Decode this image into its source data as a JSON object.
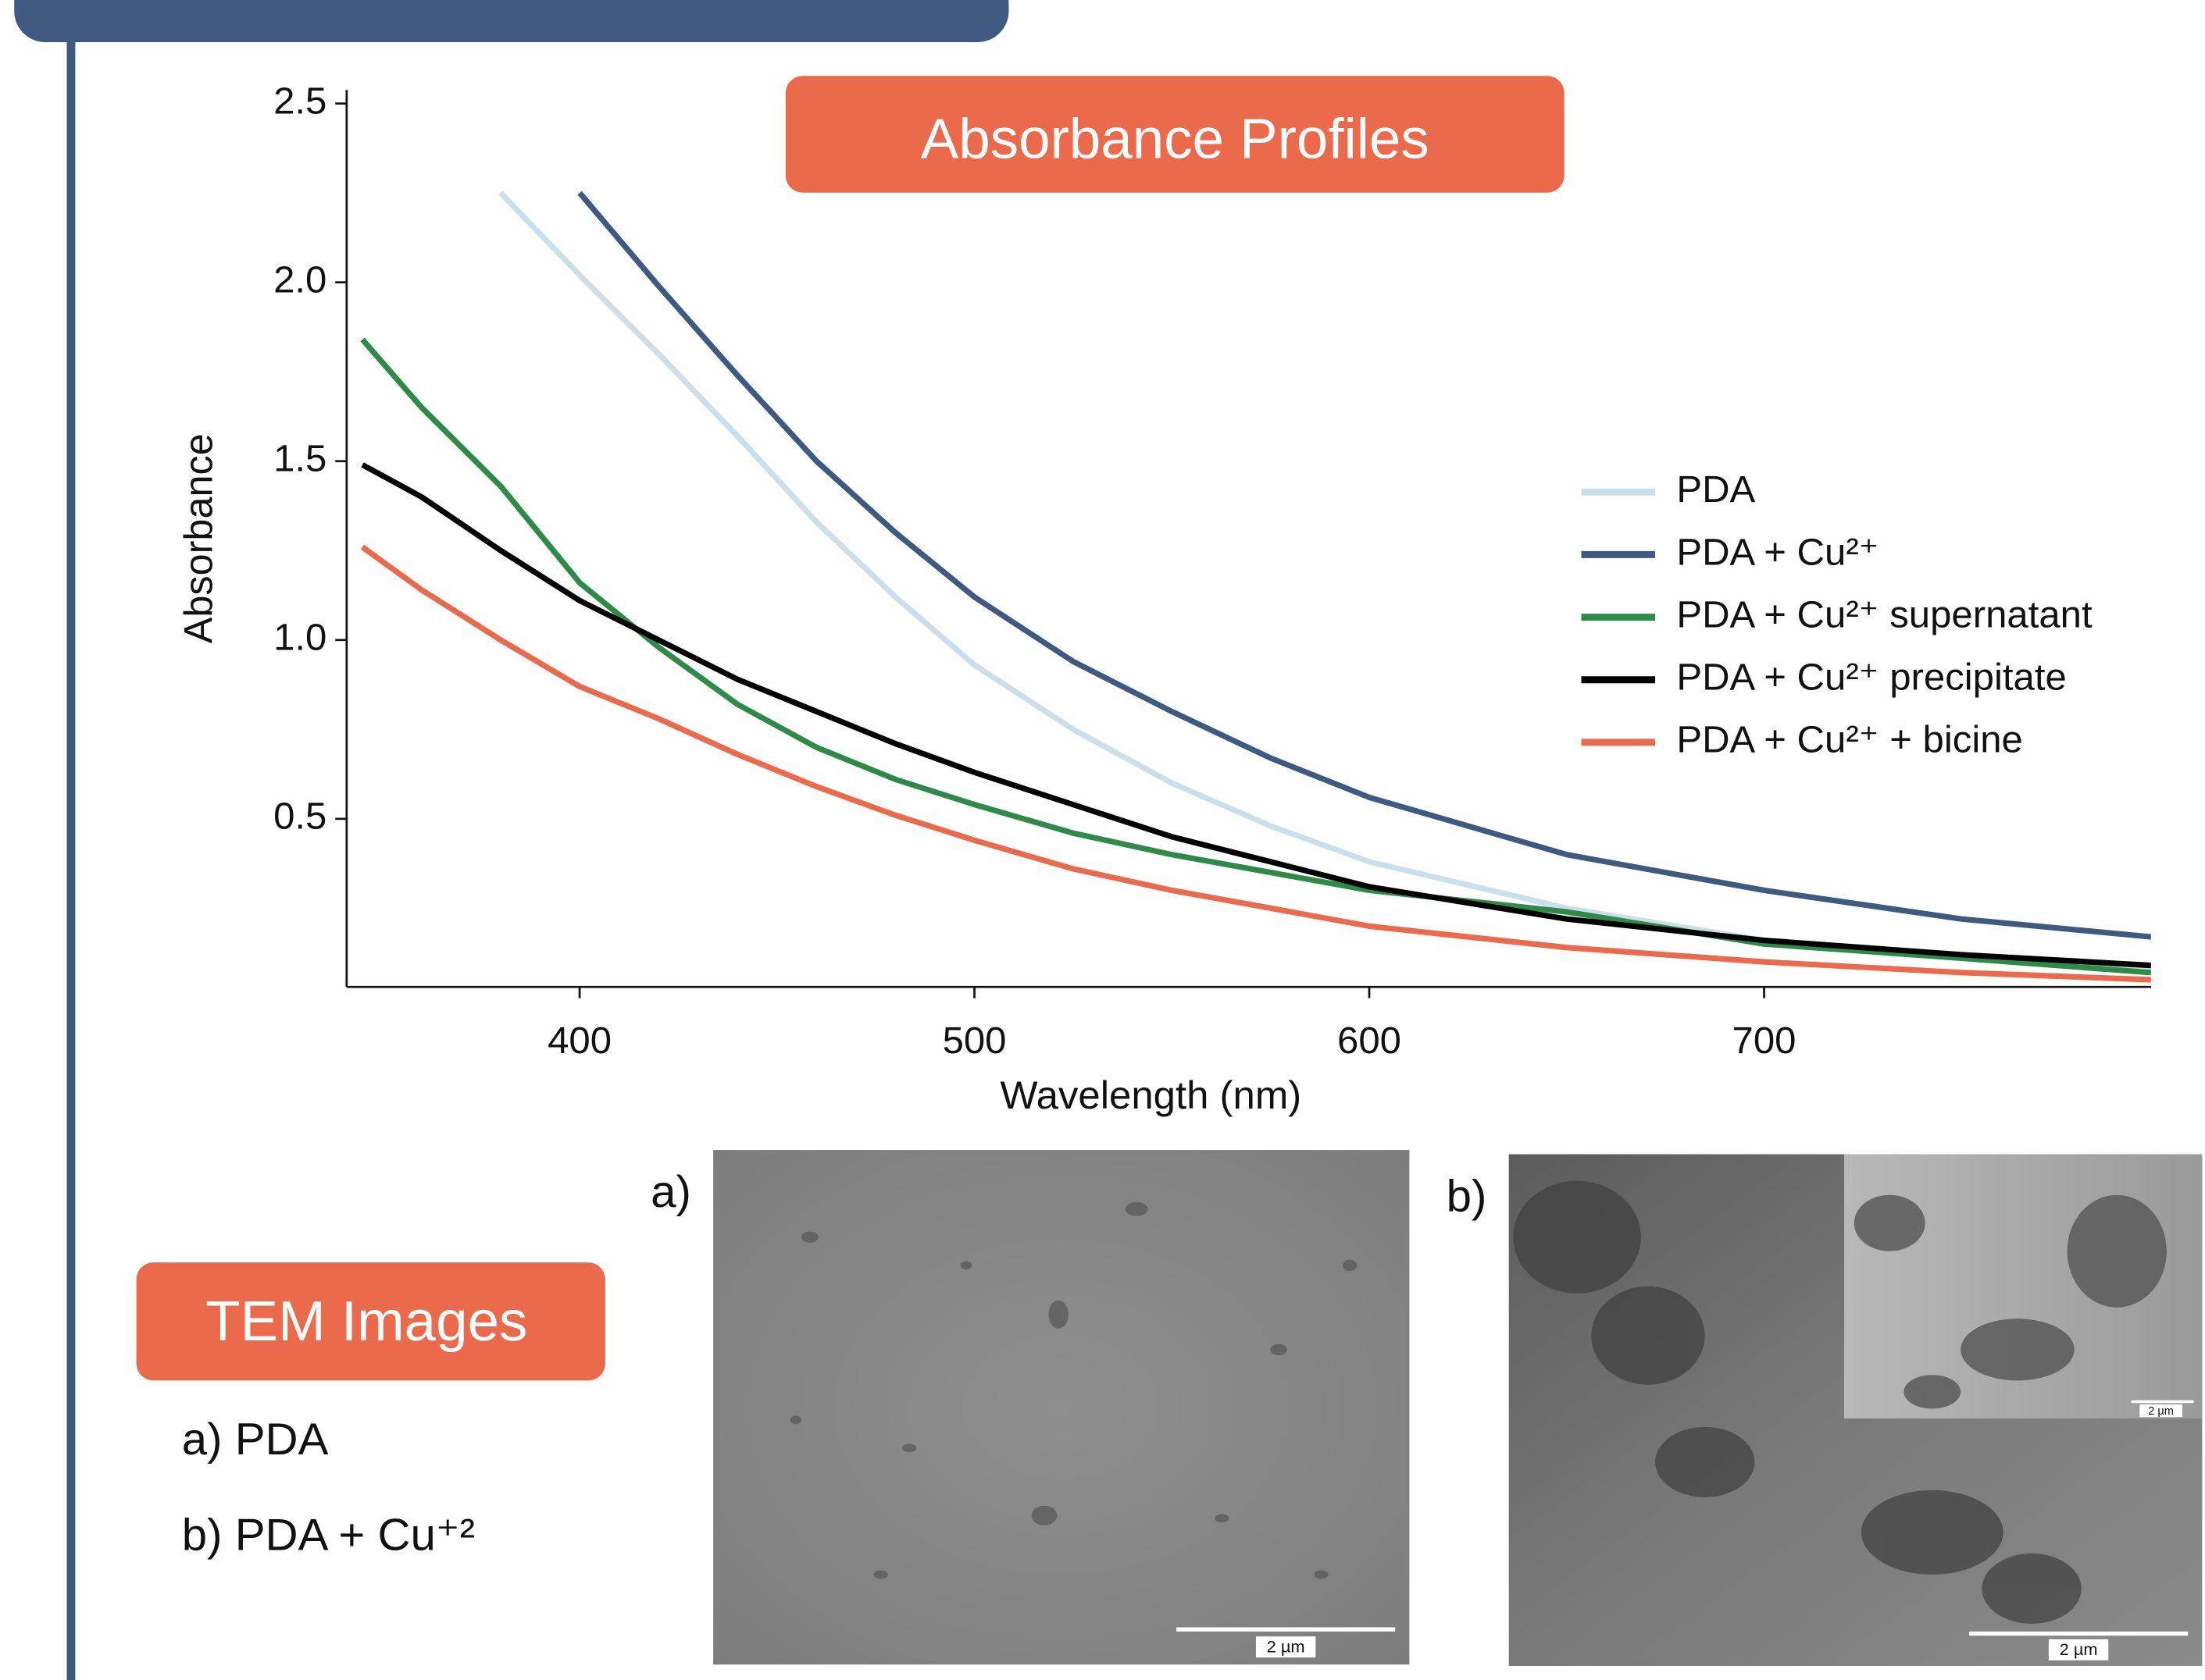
{
  "chart_data": {
    "type": "line",
    "title": "Absorbance Profiles",
    "x_label": "Wavelength (nm)",
    "y_label": "Absorbance",
    "x": [
      345,
      360,
      380,
      400,
      420,
      440,
      460,
      480,
      500,
      525,
      550,
      575,
      600,
      650,
      700,
      750,
      798
    ],
    "series": [
      {
        "name": "PDA",
        "color": "#c9e0ec",
        "values": [
          null,
          null,
          2.25,
          2.02,
          1.8,
          1.57,
          1.33,
          1.12,
          0.93,
          0.75,
          0.6,
          0.48,
          0.38,
          0.25,
          0.16,
          0.11,
          0.08
        ]
      },
      {
        "name": "PDA + Cu²⁺",
        "color": "#3f5a80",
        "values": [
          null,
          null,
          null,
          2.25,
          1.99,
          1.74,
          1.5,
          1.3,
          1.12,
          0.94,
          0.8,
          0.67,
          0.56,
          0.4,
          0.3,
          0.22,
          0.17
        ]
      },
      {
        "name": "PDA + Cu²⁺ supernatant",
        "color": "#2e8b47",
        "values": [
          1.84,
          1.65,
          1.43,
          1.16,
          0.98,
          0.82,
          0.7,
          0.61,
          0.54,
          0.46,
          0.4,
          0.35,
          0.3,
          0.24,
          0.15,
          0.11,
          0.07
        ]
      },
      {
        "name": "PDA + Cu²⁺ precipitate",
        "color": "#000000",
        "values": [
          1.49,
          1.4,
          1.25,
          1.11,
          1.0,
          0.89,
          0.8,
          0.71,
          0.63,
          0.54,
          0.45,
          0.38,
          0.31,
          0.22,
          0.16,
          0.12,
          0.09
        ]
      },
      {
        "name": "PDA + Cu²⁺ + bicine",
        "color": "#ec6a4c",
        "values": [
          1.26,
          1.14,
          1.0,
          0.87,
          0.78,
          0.68,
          0.59,
          0.51,
          0.44,
          0.36,
          0.3,
          0.25,
          0.2,
          0.14,
          0.1,
          0.07,
          0.05
        ]
      }
    ],
    "xlim": [
      341,
      798
    ],
    "ylim": [
      0.03,
      2.53
    ],
    "xticks": [
      400,
      500,
      600,
      700
    ],
    "yticks": [
      2.5,
      {
        "value": 2,
        "label": "2.0"
      },
      1.5,
      {
        "value": 1,
        "label": "1.0"
      },
      0.5
    ],
    "legend": "right"
  },
  "tem": {
    "title": "TEM Images",
    "items": [
      "a) PDA",
      "b) PDA + Cu⁺²"
    ],
    "panels": [
      {
        "label": "a)",
        "scale": "2 µm"
      },
      {
        "label": "b)",
        "scale": "2 µm",
        "inset_scale": "2 µm"
      }
    ]
  }
}
